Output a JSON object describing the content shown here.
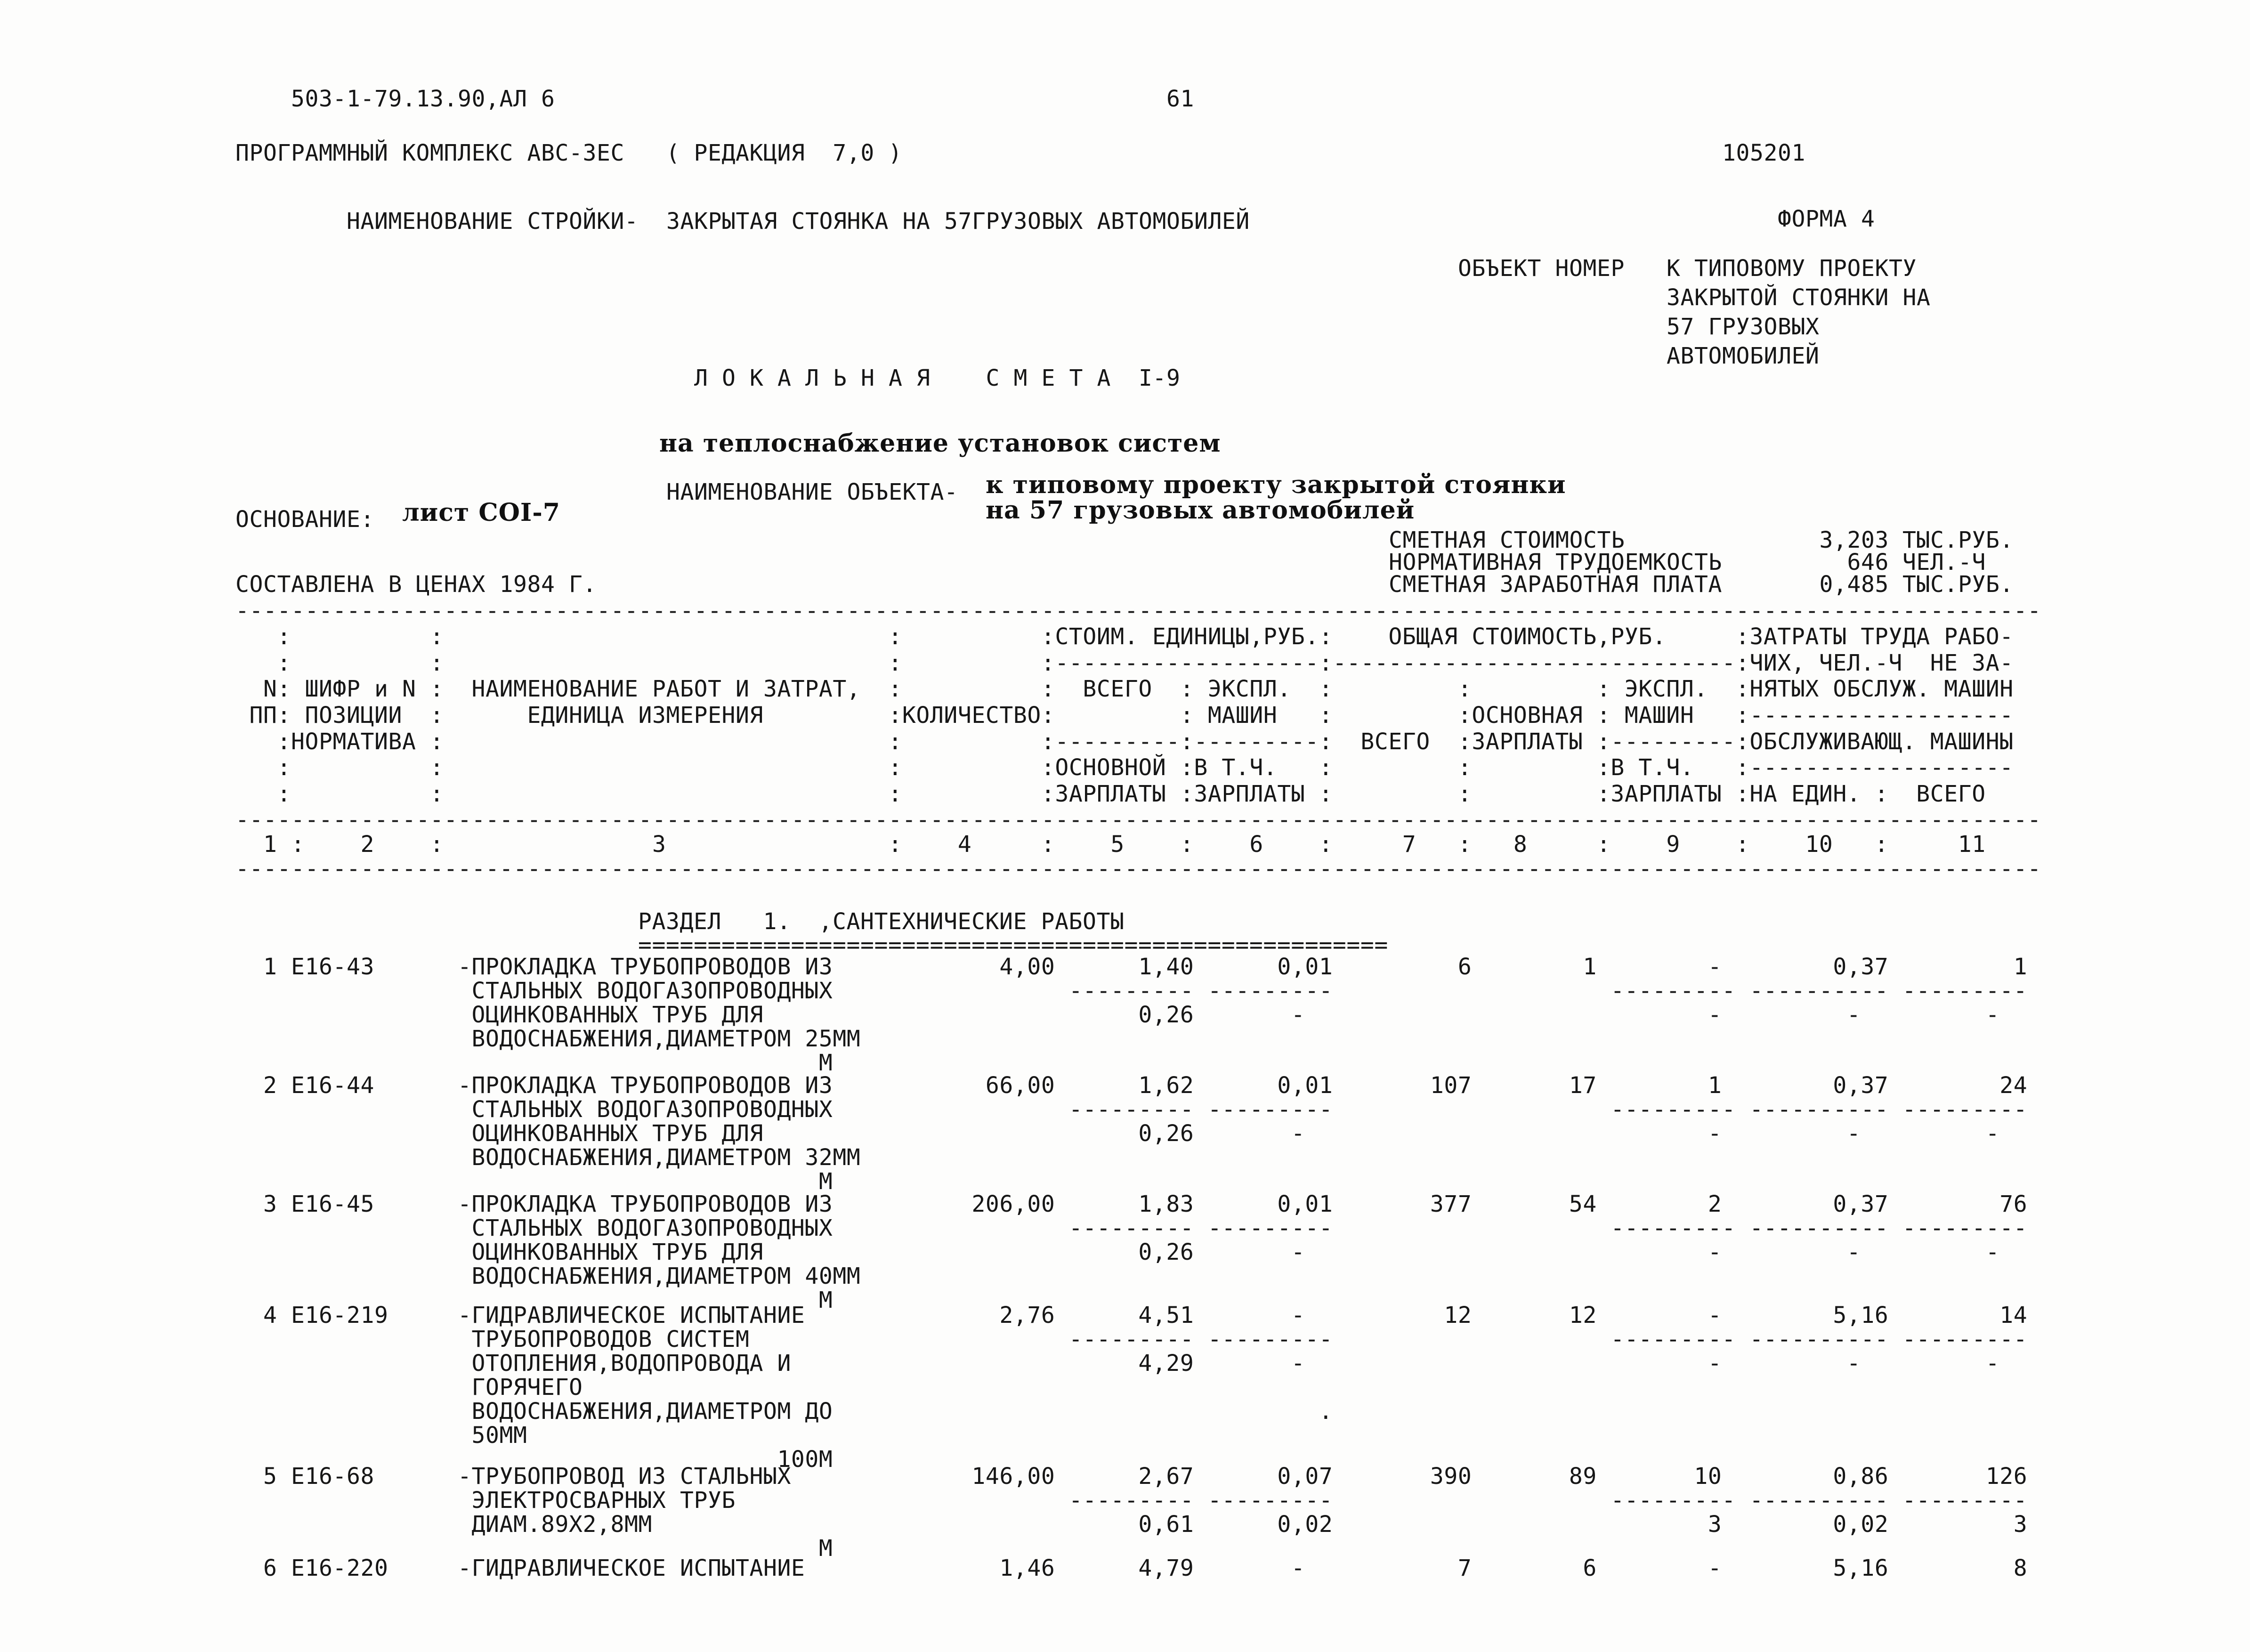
{
  "header": {
    "doc_code": "503-1-79.13.90,АЛ 6",
    "page_number": "61",
    "program_line": "ПРОГРАММНЫЙ КОМПЛЕКС АВС-3ЕС   ( РЕДАКЦИЯ  7,0 )",
    "doc_id": "105201",
    "stroika_label": "НАИМЕНОВАНИЕ СТРОЙКИ-",
    "stroika_value": "ЗАКРЫТАЯ СТОЯНКА НА 57ГРУЗОВЫХ АВТОМОБИЛЕЙ",
    "forma": "ФОРМА 4",
    "object_number_label": "ОБЪЕКТ НОМЕР",
    "object_number_lines": [
      "К ТИПОВОМУ ПРОЕКТУ",
      "ЗАКРЫТОЙ СТОЯНКИ НА",
      "57 ГРУЗОВЫХ",
      "АВТОМОБИЛЕЙ"
    ],
    "title": "Л О К А Л Ь Н А Я    С М Е Т А  I-9",
    "subtitle": "на теплоснабжение установок систем",
    "object_label": "НАИМЕНОВАНИЕ ОБЪЕКТА-",
    "object_value_lines": [
      "к типовому проекту закрытой стоянки",
      "на 57 грузовых автомобилей"
    ],
    "basis_label": "ОСНОВАНИЕ:",
    "basis_value": "лист COI-7",
    "cost_lines": [
      {
        "label": "СМЕТНАЯ СТОИМОСТЬ",
        "num": "3,203",
        "unit": "ТЫС.РУБ."
      },
      {
        "label": "НОРМАТИВНАЯ ТРУДОЕМКОСТЬ",
        "num": "646",
        "unit": "ЧЕЛ.-Ч"
      },
      {
        "label": "СМЕТНАЯ ЗАРАБОТНАЯ ПЛАТА",
        "num": "0,485",
        "unit": "ТЫС.РУБ."
      }
    ],
    "compiled": "СОСТАВЛЕНА В ЦЕНАХ 1984 Г."
  },
  "table": {
    "header_lines": [
      "   :          :                                :          :СТОИМ. ЕДИНИЦЫ,РУБ.:    ОБЩАЯ СТОИМОСТЬ,РУБ.     :ЗАТРАТЫ ТРУДА РАБО-",
      "   :          :                                :          :-------------------:-----------------------------:ЧИХ, ЧЕЛ.-Ч  НЕ ЗА-",
      "  N: ШИФР и N :  НАИМЕНОВАНИЕ РАБОТ И ЗАТРАТ,  :          :  ВСЕГО  : ЭКСПЛ.  :         :         : ЭКСПЛ.  :НЯТЫХ ОБСЛУЖ. МАШИН",
      " ПП: ПОЗИЦИИ  :      ЕДИНИЦА ИЗМЕРЕНИЯ         :КОЛИЧЕСТВО:         : МАШИН   :         :ОСНОВНАЯ : МАШИН   :-------------------",
      "   :НОРМАТИВА :                                :          :---------:---------:  ВСЕГО  :ЗАРПЛАТЫ :---------:ОБСЛУЖИВАЮЩ. МАШИНЫ",
      "   :          :                                :          :ОСНОВНОЙ :В Т.Ч.   :         :         :В Т.Ч.   :-------------------",
      "   :          :                                :          :ЗАРПЛАТЫ :ЗАРПЛАТЫ :         :         :ЗАРПЛАТЫ :НА ЕДИН. :  ВСЕГО"
    ],
    "ruler": "  1 :    2    :               3                :    4     :    5    :    6    :     7   :   8     :    9    :    10   :     11",
    "section_title": "РАЗДЕЛ   1.  ,САНТЕХНИЧЕСКИЕ РАБОТЫ",
    "rows": [
      {
        "num": "1",
        "code": "Е16-43",
        "desc": [
          "-ПРОКЛАДКА ТРУБОПРОВОДОВ ИЗ",
          "СТАЛЬНЫХ ВОДОГАЗОПРОВОДНЫХ",
          "ОЦИНКОВАННЫХ ТРУБ ДЛЯ",
          "ВОДОСНАБЖЕНИЯ,ДИАМЕТРОМ 25ММ"
        ],
        "unit": "М",
        "qty": "4,00",
        "c5": "1,40",
        "c6": "0,01",
        "c7": "6",
        "c8": "1",
        "c9": "-",
        "c10": "0,37",
        "c11": "1",
        "b5": "0,26",
        "b6": "-",
        "b9": "-",
        "b10": "-",
        "b11": "-"
      },
      {
        "num": "2",
        "code": "Е16-44",
        "desc": [
          "-ПРОКЛАДКА ТРУБОПРОВОДОВ ИЗ",
          "СТАЛЬНЫХ ВОДОГАЗОПРОВОДНЫХ",
          "ОЦИНКОВАННЫХ ТРУБ ДЛЯ",
          "ВОДОСНАБЖЕНИЯ,ДИАМЕТРОМ 32ММ"
        ],
        "unit": "М",
        "qty": "66,00",
        "c5": "1,62",
        "c6": "0,01",
        "c7": "107",
        "c8": "17",
        "c9": "1",
        "c10": "0,37",
        "c11": "24",
        "b5": "0,26",
        "b6": "-",
        "b9": "-",
        "b10": "-",
        "b11": "-"
      },
      {
        "num": "3",
        "code": "Е16-45",
        "desc": [
          "-ПРОКЛАДКА ТРУБОПРОВОДОВ ИЗ",
          "СТАЛЬНЫХ ВОДОГАЗОПРОВОДНЫХ",
          "ОЦИНКОВАННЫХ ТРУБ ДЛЯ",
          "ВОДОСНАБЖЕНИЯ,ДИАМЕТРОМ 40ММ"
        ],
        "unit": "М",
        "qty": "206,00",
        "c5": "1,83",
        "c6": "0,01",
        "c7": "377",
        "c8": "54",
        "c9": "2",
        "c10": "0,37",
        "c11": "76",
        "b5": "0,26",
        "b6": "-",
        "b9": "-",
        "b10": "-",
        "b11": "-"
      },
      {
        "num": "4",
        "code": "Е16-219",
        "desc": [
          "-ГИДРАВЛИЧЕСКОЕ ИСПЫТАНИЕ",
          "ТРУБОПРОВОДОВ СИСТЕМ",
          "ОТОПЛЕНИЯ,ВОДОПРОВОДА И",
          "ГОРЯЧЕГО",
          "ВОДОСНАБЖЕНИЯ,ДИАМЕТРОМ ДО",
          "50ММ"
        ],
        "unit": "100М",
        "qty": "2,76",
        "dot_line": 4,
        "c5": "4,51",
        "c6": "-",
        "c7": "12",
        "c8": "12",
        "c9": "-",
        "c10": "5,16",
        "c11": "14",
        "b5": "4,29",
        "b6": "-",
        "b9": "-",
        "b10": "-",
        "b11": "-"
      },
      {
        "num": "5",
        "code": "Е16-68",
        "desc": [
          "-ТРУБОПРОВОД ИЗ СТАЛЬНЫХ",
          "ЭЛЕКТРОСВАРНЫХ ТРУБ",
          "ДИАМ.89Х2,8ММ"
        ],
        "unit": "М",
        "qty": "146,00",
        "c5": "2,67",
        "c6": "0,07",
        "c7": "390",
        "c8": "89",
        "c9": "10",
        "c10": "0,86",
        "c11": "126",
        "b5": "0,61",
        "b6": "0,02",
        "b9": "3",
        "b10": "0,02",
        "b11": "3"
      },
      {
        "num": "6",
        "code": "Е16-220",
        "desc": [
          "-ГИДРАВЛИЧЕСКОЕ ИСПЫТАНИЕ"
        ],
        "qty": "1,46",
        "c5": "4,79",
        "c6": "-",
        "c7": "7",
        "c8": "6",
        "c9": "-",
        "c10": "5,16",
        "c11": "8"
      }
    ]
  }
}
